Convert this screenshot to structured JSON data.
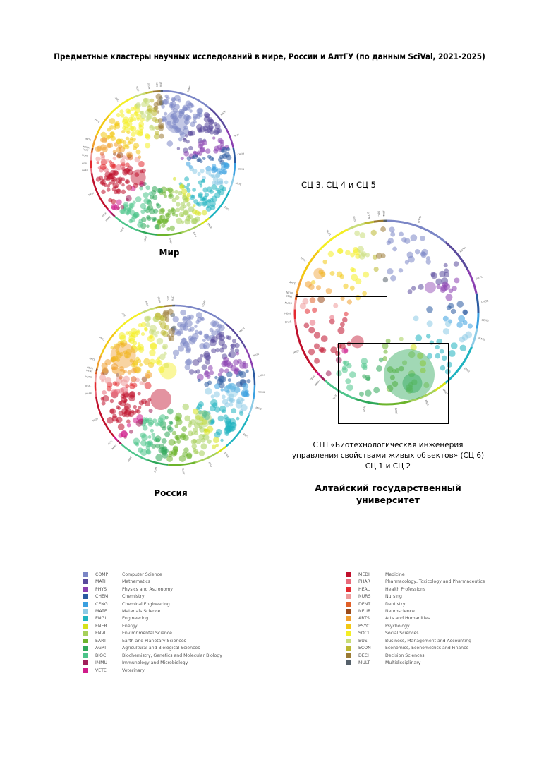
{
  "title": "Предметные кластеры научных исследований в мире, России и АлтГУ (по данным SciVal, 2021-2025)",
  "panels": {
    "world": {
      "caption": "Мир"
    },
    "russia": {
      "caption": "Россия"
    },
    "altsu": {
      "caption_line1": "Алтайский государственный",
      "caption_line2": "университет",
      "box_top_label": "СЦ 3, СЦ 4 и СЦ 5",
      "note_line1": "СТП «Биотехнологическая инженерия",
      "note_line2": "управления свойствами живых объектов» (СЦ 6)",
      "note_line3": "СЦ 1 и СЦ 2"
    }
  },
  "ring_labels": [
    "MULT",
    "COMP",
    "MATH",
    "PHYS",
    "CHEM",
    "CENG",
    "MATE",
    "ENGI",
    "ENER",
    "ENVI",
    "EART",
    "AGRI",
    "BIOC",
    "IMMU",
    "VETE",
    "MEDI",
    "PHAR",
    "HEAL",
    "NURS",
    "DENT",
    "NEUR",
    "ARTS",
    "PSYC",
    "SOCI",
    "BUSI",
    "ECON",
    "DECI"
  ],
  "legend_left": [
    {
      "code": "COMP",
      "name": "Computer Science",
      "color": "#7b86c6"
    },
    {
      "code": "MATH",
      "name": "Mathematics",
      "color": "#5a4a9c"
    },
    {
      "code": "PHYS",
      "name": "Physics and Astronomy",
      "color": "#8a3fb0"
    },
    {
      "code": "CHEM",
      "name": "Chemistry",
      "color": "#2a5aa0"
    },
    {
      "code": "CENG",
      "name": "Chemical Engineering",
      "color": "#3aa0e0"
    },
    {
      "code": "MATE",
      "name": "Materials Science",
      "color": "#8ccbe6"
    },
    {
      "code": "ENGI",
      "name": "Engineering",
      "color": "#1fb3c0"
    },
    {
      "code": "ENER",
      "name": "Energy",
      "color": "#d6e21a"
    },
    {
      "code": "ENVI",
      "name": "Environmental Science",
      "color": "#a6d05a"
    },
    {
      "code": "EART",
      "name": "Earth and Planetary Sciences",
      "color": "#6cb42c"
    },
    {
      "code": "AGRI",
      "name": "Agricultural and Biological Sciences",
      "color": "#2fa85a"
    },
    {
      "code": "BIOC",
      "name": "Biochemistry, Genetics and Molecular Biology",
      "color": "#4cc48a"
    },
    {
      "code": "IMMU",
      "name": "Immunology and Microbiology",
      "color": "#a0205a"
    },
    {
      "code": "VETE",
      "name": "Veterinary",
      "color": "#d01c8a"
    }
  ],
  "legend_right": [
    {
      "code": "MEDI",
      "name": "Medicine",
      "color": "#c0102c"
    },
    {
      "code": "PHAR",
      "name": "Pharmacology, Toxicology and Pharmaceutics",
      "color": "#e86a7a"
    },
    {
      "code": "HEAL",
      "name": "Health Professions",
      "color": "#e42a30"
    },
    {
      "code": "NURS",
      "name": "Nursing",
      "color": "#ee9a9a"
    },
    {
      "code": "DENT",
      "name": "Dentistry",
      "color": "#e06028"
    },
    {
      "code": "NEUR",
      "name": "Neuroscience",
      "color": "#9a4a1a"
    },
    {
      "code": "ARTS",
      "name": "Arts and Humanities",
      "color": "#f0a030"
    },
    {
      "code": "PSYC",
      "name": "Psychology",
      "color": "#f2c814"
    },
    {
      "code": "SOCI",
      "name": "Social Sciences",
      "color": "#f4ee24"
    },
    {
      "code": "BUSI",
      "name": "Business, Management and Accounting",
      "color": "#c8dc78"
    },
    {
      "code": "ECON",
      "name": "Economics, Econometrics and Finance",
      "color": "#bcb830"
    },
    {
      "code": "DECI",
      "name": "Decision Sciences",
      "color": "#9a7a34"
    },
    {
      "code": "MULT",
      "name": "Multidisciplinary",
      "color": "#55606a"
    }
  ]
}
